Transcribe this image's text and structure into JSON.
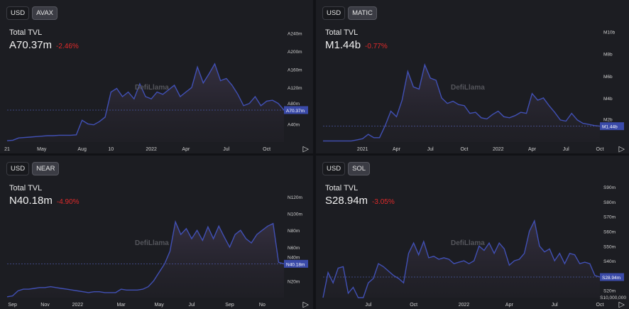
{
  "panels": [
    {
      "currency_button": "USD",
      "token_button": "AVAX",
      "label": "Total TVL",
      "value": "A70.37m",
      "change": "-2.46%"
    },
    {
      "currency_button": "USD",
      "token_button": "MATIC",
      "label": "Total TVL",
      "value": "M1.44b",
      "change": "-0.77%"
    },
    {
      "currency_button": "USD",
      "token_button": "NEAR",
      "label": "Total TVL",
      "value": "N40.18m",
      "change": "-4.90%"
    },
    {
      "currency_button": "USD",
      "token_button": "SOL",
      "label": "Total TVL",
      "value": "S28.94m",
      "change": "-3.05%"
    }
  ],
  "watermark": "DefiLlama",
  "colors": {
    "line": "#4150b5",
    "negative": "#e02a2a",
    "badge": "#3a4aa8"
  },
  "chart_data": [
    {
      "type": "area",
      "title": "Total TVL (AVAX)",
      "unit": "AVAX millions",
      "ylim": [
        0,
        250
      ],
      "yticks": [
        {
          "v": 40,
          "label": "A40m"
        },
        {
          "v": 80,
          "label": "A80m"
        },
        {
          "v": 120,
          "label": "A120m"
        },
        {
          "v": 160,
          "label": "A160m"
        },
        {
          "v": 200,
          "label": "A200m"
        },
        {
          "v": 240,
          "label": "A240m"
        }
      ],
      "current": 70.37,
      "current_label": "A70.37m",
      "values": [
        3,
        4,
        9,
        10,
        11,
        12,
        13,
        14,
        14,
        15,
        15,
        15,
        16,
        48,
        40,
        38,
        45,
        55,
        110,
        118,
        100,
        110,
        95,
        128,
        100,
        95,
        110,
        105,
        115,
        125,
        100,
        110,
        120,
        165,
        130,
        150,
        172,
        135,
        140,
        125,
        105,
        80,
        85,
        100,
        80,
        90,
        92,
        85,
        70.37
      ],
      "xticks": [
        {
          "i": 0,
          "label": "21"
        },
        {
          "i": 6,
          "label": "May"
        },
        {
          "i": 13,
          "label": "Aug"
        },
        {
          "i": 18,
          "label": "10"
        },
        {
          "i": 25,
          "label": "2022"
        },
        {
          "i": 31,
          "label": "Apr"
        },
        {
          "i": 38,
          "label": "Jul"
        },
        {
          "i": 45,
          "label": "Oct"
        }
      ]
    },
    {
      "type": "area",
      "title": "Total TVL (MATIC)",
      "unit": "MATIC billions",
      "ylim": [
        0,
        10.3
      ],
      "yticks": [
        {
          "v": 2,
          "label": "M2b"
        },
        {
          "v": 4,
          "label": "M4b"
        },
        {
          "v": 6,
          "label": "M6b"
        },
        {
          "v": 8,
          "label": "M8b"
        },
        {
          "v": 10,
          "label": "M10b"
        }
      ],
      "current": 1.44,
      "current_label": "M1.44b",
      "values": [
        0.1,
        0.1,
        0.1,
        0.1,
        0.1,
        0.1,
        0.2,
        0.3,
        0.7,
        0.4,
        0.4,
        1.5,
        2.8,
        2.3,
        3.8,
        6.4,
        5,
        4.8,
        7,
        5.8,
        5.6,
        4,
        3.5,
        3.7,
        3.4,
        3.3,
        2.6,
        2.7,
        2.2,
        2.1,
        2.5,
        2.8,
        2.3,
        2.2,
        2.4,
        2.7,
        2.6,
        4.4,
        3.8,
        4,
        3.3,
        2.7,
        2,
        1.9,
        2.6,
        2,
        1.7,
        1.6,
        1.5,
        1.44
      ],
      "xticks": [
        {
          "i": 7,
          "label": "2021"
        },
        {
          "i": 13,
          "label": "Apr"
        },
        {
          "i": 19,
          "label": "Jul"
        },
        {
          "i": 25,
          "label": "Oct"
        },
        {
          "i": 31,
          "label": "2022"
        },
        {
          "i": 37,
          "label": "Apr"
        },
        {
          "i": 43,
          "label": "Jul"
        },
        {
          "i": 49,
          "label": "Oct"
        }
      ]
    },
    {
      "type": "area",
      "title": "Total TVL (NEAR)",
      "unit": "NEAR millions",
      "ylim": [
        0,
        135
      ],
      "yticks": [
        {
          "v": 20,
          "label": "N20m"
        },
        {
          "v": 40,
          "label": "N40m"
        },
        {
          "v": 60,
          "label": "N60m"
        },
        {
          "v": 80,
          "label": "N80m"
        },
        {
          "v": 100,
          "label": "N100m"
        },
        {
          "v": 120,
          "label": "N120m"
        }
      ],
      "current": 40.18,
      "current_label": "N40.18m",
      "values": [
        1,
        2,
        8,
        10,
        10,
        11,
        12,
        12,
        13,
        12,
        11,
        10,
        9,
        8,
        7,
        6,
        7,
        7,
        6,
        6,
        6,
        10,
        9,
        9,
        9,
        10,
        13,
        20,
        30,
        40,
        55,
        90,
        75,
        82,
        70,
        80,
        68,
        84,
        70,
        85,
        72,
        60,
        75,
        80,
        70,
        65,
        75,
        80,
        85,
        88,
        42,
        40.18
      ],
      "xticks": [
        {
          "i": 1,
          "label": "Sep"
        },
        {
          "i": 7,
          "label": "Nov"
        },
        {
          "i": 13,
          "label": "2022"
        },
        {
          "i": 21,
          "label": "Mar"
        },
        {
          "i": 28,
          "label": "May"
        },
        {
          "i": 34,
          "label": "Jul"
        },
        {
          "i": 41,
          "label": "Sep"
        },
        {
          "i": 47,
          "label": "No"
        }
      ]
    },
    {
      "type": "area",
      "title": "Total TVL (SOL)",
      "unit": "SOL millions",
      "ylim": [
        15,
        92
      ],
      "yticks": [
        {
          "v": 10,
          "label": "S10,000,000"
        },
        {
          "v": 20,
          "label": "S20m"
        },
        {
          "v": 40,
          "label": "S40m"
        },
        {
          "v": 50,
          "label": "S50m"
        },
        {
          "v": 60,
          "label": "S60m"
        },
        {
          "v": 70,
          "label": "S70m"
        },
        {
          "v": 80,
          "label": "S80m"
        },
        {
          "v": 90,
          "label": "S90m"
        }
      ],
      "current": 28.94,
      "current_label": "S28.94m",
      "values": [
        13,
        32,
        25,
        35,
        36,
        18,
        22,
        15,
        14,
        25,
        28,
        38,
        36,
        33,
        30,
        28,
        25,
        45,
        52,
        44,
        53,
        42,
        43,
        41,
        42,
        41,
        38,
        39,
        40,
        38,
        40,
        50,
        47,
        52,
        45,
        52,
        48,
        37,
        40,
        41,
        45,
        60,
        67,
        50,
        46,
        48,
        40,
        45,
        38,
        45,
        44,
        38,
        39,
        38,
        30,
        28.94
      ],
      "xticks": [
        {
          "i": 9,
          "label": "Jul"
        },
        {
          "i": 18,
          "label": "Oct"
        },
        {
          "i": 28,
          "label": "2022"
        },
        {
          "i": 37,
          "label": "Apr"
        },
        {
          "i": 46,
          "label": "Jul"
        },
        {
          "i": 55,
          "label": "Oct"
        }
      ]
    }
  ]
}
